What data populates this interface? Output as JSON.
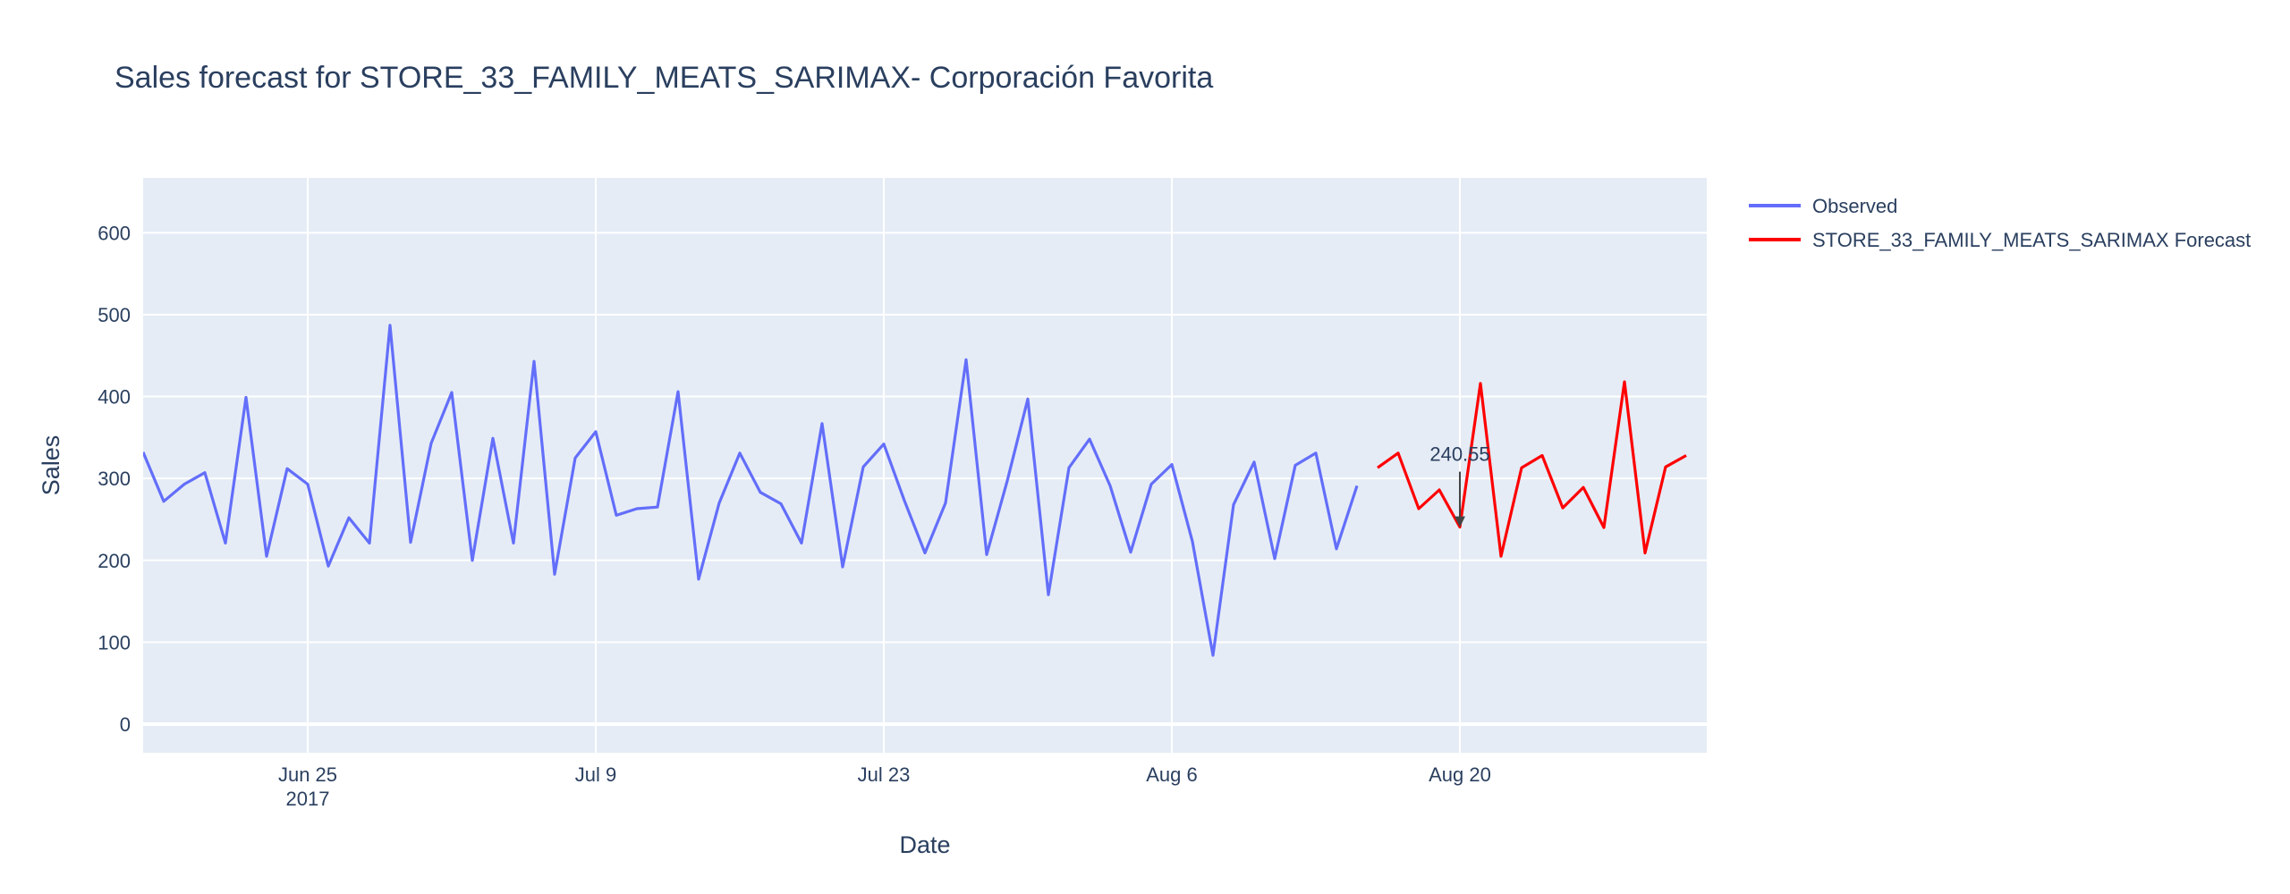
{
  "chart_data": {
    "type": "line",
    "title": "Sales forecast for STORE_33_FAMILY_MEATS_SARIMAX- Corporación Favorita",
    "xlabel": "Date",
    "ylabel": "Sales",
    "ylim": [
      -35,
      667
    ],
    "xlim": [
      "2017-06-17",
      "2017-09-01"
    ],
    "yticks": [
      0,
      100,
      200,
      300,
      400,
      500,
      600
    ],
    "xticks": [
      {
        "date": "2017-06-25",
        "label": "Jun 25",
        "sublabel": "2017"
      },
      {
        "date": "2017-07-09",
        "label": "Jul 9",
        "sublabel": ""
      },
      {
        "date": "2017-07-23",
        "label": "Jul 23",
        "sublabel": ""
      },
      {
        "date": "2017-08-06",
        "label": "Aug 6",
        "sublabel": ""
      },
      {
        "date": "2017-08-20",
        "label": "Aug 20",
        "sublabel": ""
      }
    ],
    "grid": true,
    "legend_position": "top-right",
    "series": [
      {
        "name": "Observed",
        "color": "#636efa",
        "x": [
          "2017-06-17",
          "2017-06-18",
          "2017-06-19",
          "2017-06-20",
          "2017-06-21",
          "2017-06-22",
          "2017-06-23",
          "2017-06-24",
          "2017-06-25",
          "2017-06-26",
          "2017-06-27",
          "2017-06-28",
          "2017-06-29",
          "2017-06-30",
          "2017-07-01",
          "2017-07-02",
          "2017-07-03",
          "2017-07-04",
          "2017-07-05",
          "2017-07-06",
          "2017-07-07",
          "2017-07-08",
          "2017-07-09",
          "2017-07-10",
          "2017-07-11",
          "2017-07-12",
          "2017-07-13",
          "2017-07-14",
          "2017-07-15",
          "2017-07-16",
          "2017-07-17",
          "2017-07-18",
          "2017-07-19",
          "2017-07-20",
          "2017-07-21",
          "2017-07-22",
          "2017-07-23",
          "2017-07-24",
          "2017-07-25",
          "2017-07-26",
          "2017-07-27",
          "2017-07-28",
          "2017-07-29",
          "2017-07-30",
          "2017-07-31",
          "2017-08-01",
          "2017-08-02",
          "2017-08-03",
          "2017-08-04",
          "2017-08-05",
          "2017-08-06",
          "2017-08-07",
          "2017-08-08",
          "2017-08-09",
          "2017-08-10",
          "2017-08-11",
          "2017-08-12",
          "2017-08-13",
          "2017-08-14",
          "2017-08-15"
        ],
        "y": [
          332,
          272,
          293,
          307,
          221,
          399,
          205,
          312,
          293,
          193,
          252,
          221,
          487,
          222,
          343,
          405,
          200,
          349,
          221,
          443,
          183,
          325,
          357,
          255,
          263,
          265,
          406,
          177,
          270,
          331,
          283,
          269,
          221,
          367,
          192,
          314,
          342,
          273,
          209,
          270,
          445,
          207,
          297,
          397,
          158,
          313,
          348,
          291,
          210,
          293,
          317,
          223,
          84,
          268,
          320,
          202,
          316,
          331,
          214,
          291
        ]
      },
      {
        "name": "STORE_33_FAMILY_MEATS_SARIMAX Forecast",
        "color": "#ff0000",
        "x": [
          "2017-08-16",
          "2017-08-17",
          "2017-08-18",
          "2017-08-19",
          "2017-08-20",
          "2017-08-21",
          "2017-08-22",
          "2017-08-23",
          "2017-08-24",
          "2017-08-25",
          "2017-08-26",
          "2017-08-27",
          "2017-08-28",
          "2017-08-29",
          "2017-08-30",
          "2017-08-31"
        ],
        "y": [
          313,
          331,
          263,
          286,
          240.55,
          416,
          205,
          313,
          328,
          264,
          289,
          240,
          418,
          209,
          314,
          328
        ]
      }
    ],
    "annotations": [
      {
        "text": "240.55",
        "x": "2017-08-20",
        "y": 240.55,
        "arrow": true
      }
    ]
  }
}
